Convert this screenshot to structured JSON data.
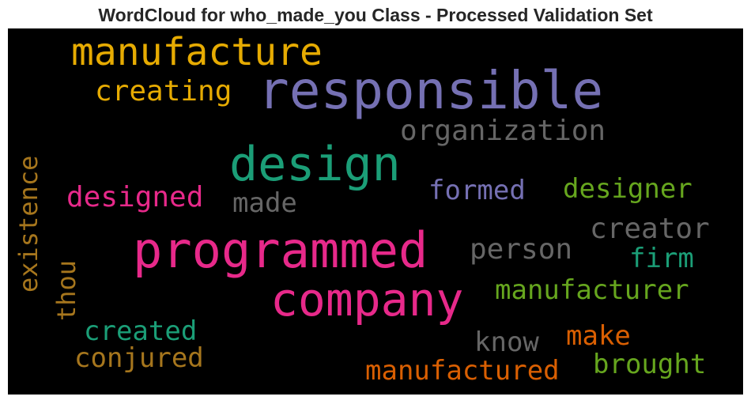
{
  "title": "WordCloud for who_made_you Class - Processed Validation Set",
  "words": {
    "responsible": {
      "text": "responsible",
      "color": "#7570b3"
    },
    "manufacture": {
      "text": "manufacture",
      "color": "#e6ab02"
    },
    "creating": {
      "text": "creating",
      "color": "#e6ab02"
    },
    "organization": {
      "text": "organization",
      "color": "#666666"
    },
    "design": {
      "text": "design",
      "color": "#1b9e77"
    },
    "existence": {
      "text": "existence",
      "color": "#a6761d"
    },
    "designed": {
      "text": "designed",
      "color": "#e7298a"
    },
    "made": {
      "text": "made",
      "color": "#666666"
    },
    "formed": {
      "text": "formed",
      "color": "#7570b3"
    },
    "designer": {
      "text": "designer",
      "color": "#66a61e"
    },
    "creator": {
      "text": "creator",
      "color": "#666666"
    },
    "programmed": {
      "text": "programmed",
      "color": "#e7298a"
    },
    "person": {
      "text": "person",
      "color": "#666666"
    },
    "firm": {
      "text": "firm",
      "color": "#1b9e77"
    },
    "thou": {
      "text": "thou",
      "color": "#a6761d"
    },
    "company": {
      "text": "company",
      "color": "#e7298a"
    },
    "manufacturer": {
      "text": "manufacturer",
      "color": "#66a61e"
    },
    "created": {
      "text": "created",
      "color": "#1b9e77"
    },
    "know": {
      "text": "know",
      "color": "#666666"
    },
    "make": {
      "text": "make",
      "color": "#d95f02"
    },
    "conjured": {
      "text": "conjured",
      "color": "#a6761d"
    },
    "manufactured": {
      "text": "manufactured",
      "color": "#d95f02"
    },
    "brought": {
      "text": "brought",
      "color": "#66a61e"
    }
  }
}
